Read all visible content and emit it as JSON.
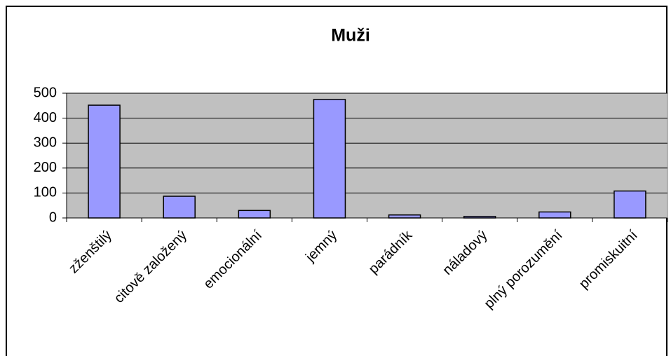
{
  "chart_data": {
    "type": "bar",
    "title": "Muži",
    "categories": [
      "zženštilý",
      "citově založený",
      "emocionální",
      "jemný",
      "parádník",
      "náladový",
      "plný porozumění",
      "promiskuitní"
    ],
    "values": [
      452,
      87,
      30,
      475,
      12,
      6,
      24,
      108
    ],
    "color": "#9999ff",
    "ylim": [
      0,
      500
    ],
    "yticks": [
      0,
      100,
      200,
      300,
      400,
      500
    ],
    "grid": true
  }
}
